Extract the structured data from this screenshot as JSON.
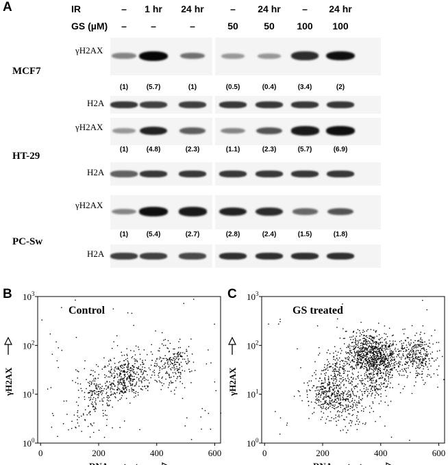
{
  "panels": {
    "a": {
      "letter": "A",
      "header": {
        "ir_label": "IR",
        "gs_label": "GS (µM)",
        "ir": [
          "–",
          "1 hr",
          "24 hr",
          "–",
          "24 hr",
          "–",
          "24 hr"
        ],
        "gs": [
          "–",
          "–",
          "–",
          "50",
          "50",
          "100",
          "100"
        ]
      },
      "cell_lines": [
        {
          "name": "MCF7",
          "top_label": "γH2AX",
          "bottom_label": "H2A",
          "quant": [
            "(1)",
            "(5.7)",
            "(1)",
            "(0.5)",
            "(0.4)",
            "(3.4)",
            "(2)"
          ],
          "gamma_intensity": [
            0.35,
            1.0,
            0.45,
            0.25,
            0.25,
            0.8,
            0.95
          ],
          "h2a_intensity": [
            0.85,
            0.8,
            0.8,
            0.85,
            0.85,
            0.85,
            0.85
          ]
        },
        {
          "name": "HT-29",
          "top_label": "γH2AX",
          "bottom_label": "H2A",
          "quant": [
            "(1)",
            "(4.8)",
            "(2.3)",
            "(1.1)",
            "(2.3)",
            "(5.7)",
            "(6.9)"
          ],
          "gamma_intensity": [
            0.25,
            0.85,
            0.55,
            0.35,
            0.6,
            0.9,
            0.95
          ],
          "h2a_intensity": [
            0.6,
            0.85,
            0.85,
            0.85,
            0.85,
            0.85,
            0.85
          ]
        },
        {
          "name": "PC-Sw",
          "top_label": "γH2AX",
          "bottom_label": "H2A",
          "quant": [
            "(1)",
            "(5.4)",
            "(2.7)",
            "(2.8)",
            "(2.4)",
            "(1.5)",
            "(1.8)"
          ],
          "gamma_intensity": [
            0.35,
            0.95,
            0.9,
            0.85,
            0.8,
            0.5,
            0.6
          ],
          "h2a_intensity": [
            0.8,
            0.8,
            0.75,
            0.9,
            0.9,
            0.9,
            0.9
          ]
        }
      ]
    },
    "b": {
      "letter": "B",
      "title": "Control",
      "xlabel": "DNA content",
      "ylabel": "γH2AX"
    },
    "c": {
      "letter": "C",
      "title": "GS treated",
      "xlabel": "DNA content",
      "ylabel": "γH2AX"
    }
  },
  "chart_data": [
    {
      "type": "scatter",
      "panel": "B",
      "title": "Control",
      "xlabel": "DNA content",
      "ylabel": "γH2AX",
      "xlim": [
        -10,
        620
      ],
      "ylim_log10": [
        0,
        3
      ],
      "y_scale": "log",
      "x_ticks": [
        0,
        200,
        400,
        600
      ],
      "y_ticks": [
        "10^0",
        "10^1",
        "10^2",
        "10^3"
      ],
      "clusters": [
        {
          "x": 190,
          "y": 10,
          "count": 140
        },
        {
          "x": 300,
          "y": 25,
          "count": 330
        },
        {
          "x": 450,
          "y": 40,
          "count": 220
        },
        {
          "x": 250,
          "y": 15,
          "count": 80
        },
        {
          "x": 150,
          "y": 3,
          "count": 40
        }
      ]
    },
    {
      "type": "scatter",
      "panel": "C",
      "title": "GS treated",
      "xlabel": "DNA content",
      "ylabel": "γH2AX",
      "xlim": [
        -10,
        620
      ],
      "ylim_log10": [
        0,
        3
      ],
      "y_scale": "log",
      "x_ticks": [
        0,
        200,
        400,
        600
      ],
      "y_ticks": [
        "10^0",
        "10^1",
        "10^2",
        "10^3"
      ],
      "clusters": [
        {
          "x": 225,
          "y": 10,
          "count": 360
        },
        {
          "x": 390,
          "y": 60,
          "count": 620
        },
        {
          "x": 330,
          "y": 80,
          "count": 260
        },
        {
          "x": 380,
          "y": 18,
          "count": 160
        },
        {
          "x": 520,
          "y": 60,
          "count": 300
        },
        {
          "x": 250,
          "y": 30,
          "count": 120
        },
        {
          "x": 300,
          "y": 5,
          "count": 90
        }
      ]
    }
  ]
}
